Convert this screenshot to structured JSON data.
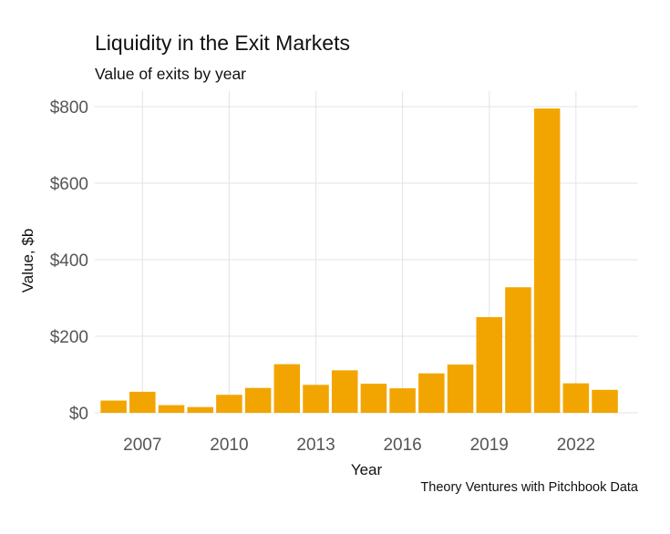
{
  "title": "Liquidity in the Exit Markets",
  "subtitle": "Value of exits by year",
  "caption": "Theory Ventures with Pitchbook Data",
  "chart_data": {
    "type": "bar",
    "xlabel": "Year",
    "ylabel": "Value, $b",
    "categories": [
      2006,
      2007,
      2008,
      2009,
      2010,
      2011,
      2012,
      2013,
      2014,
      2015,
      2016,
      2017,
      2018,
      2019,
      2020,
      2021,
      2022,
      2023
    ],
    "values": [
      32,
      55,
      20,
      15,
      47,
      65,
      127,
      73,
      111,
      76,
      64,
      103,
      126,
      250,
      328,
      795,
      77,
      60
    ],
    "ylim": [
      0,
      810
    ],
    "yticks": [
      0,
      200,
      400,
      600,
      800
    ],
    "ytick_labels": [
      "$0",
      "$200",
      "$400",
      "$600",
      "$800"
    ],
    "xticks": [
      2007,
      2010,
      2013,
      2016,
      2019,
      2022
    ],
    "xtick_labels": [
      "2007",
      "2010",
      "2013",
      "2016",
      "2019",
      "2022"
    ],
    "bar_color": "#F2A500",
    "grid_color": "#E3E3E3",
    "grid": true,
    "legend": false
  }
}
